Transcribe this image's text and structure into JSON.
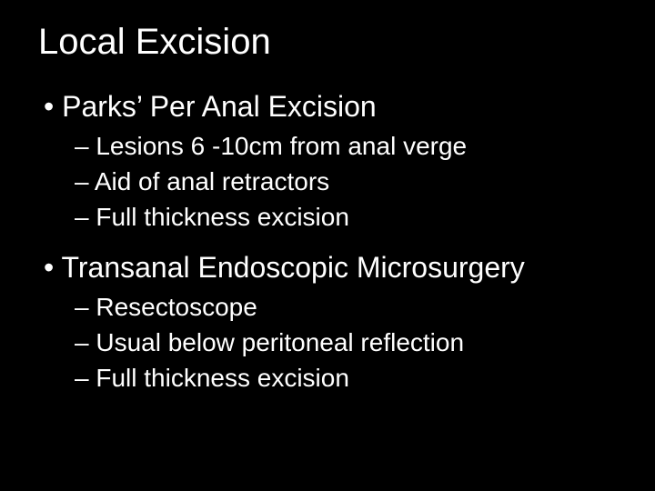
{
  "slide": {
    "background_color": "#000000",
    "text_color": "#ffffff",
    "title": "Local Excision",
    "title_fontsize": 40,
    "bullets": [
      {
        "text": "Parks’ Per Anal Excision",
        "fontsize": 32,
        "sub": [
          {
            "text": "Lesions 6 -10cm from anal verge",
            "fontsize": 28
          },
          {
            "text": "Aid of anal retractors",
            "fontsize": 28
          },
          {
            "text": "Full thickness excision",
            "fontsize": 28
          }
        ]
      },
      {
        "text": "Transanal Endoscopic Microsurgery",
        "fontsize": 32,
        "sub": [
          {
            "text": "Resectoscope",
            "fontsize": 28
          },
          {
            "text": "Usual below peritoneal reflection",
            "fontsize": 28
          },
          {
            "text": "Full thickness excision",
            "fontsize": 28
          }
        ]
      }
    ]
  }
}
